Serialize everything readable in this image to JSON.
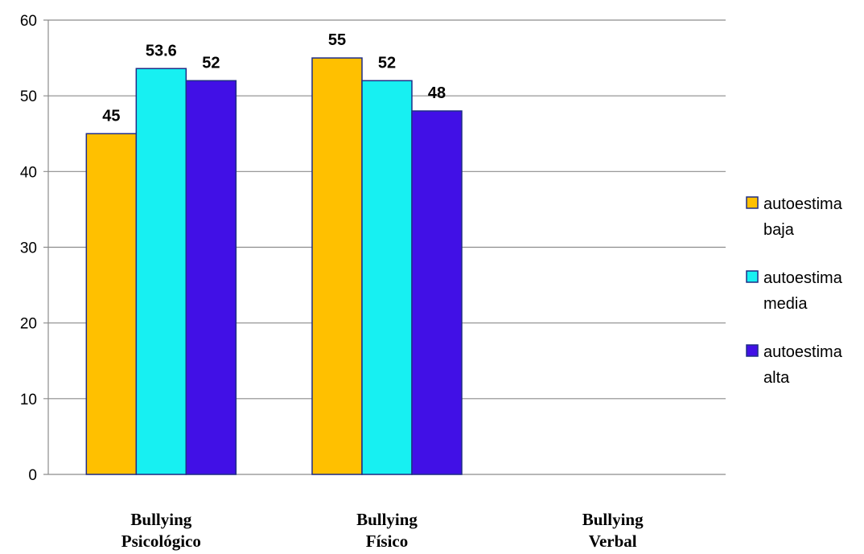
{
  "chart_data": {
    "type": "bar",
    "categories": [
      [
        "Bullying",
        "Psicológico"
      ],
      [
        "Bullying",
        "Físico"
      ],
      [
        "Bullying",
        "Verbal"
      ]
    ],
    "series": [
      {
        "name": [
          "autoestima",
          "baja"
        ],
        "color": "#FFC000",
        "values": [
          45,
          55,
          null
        ]
      },
      {
        "name": [
          "autoestima",
          "media"
        ],
        "color": "#17F0F2",
        "values": [
          53.6,
          52,
          null
        ]
      },
      {
        "name": [
          "autoestima",
          "alta"
        ],
        "color": "#4110E6",
        "values": [
          52,
          48,
          null
        ]
      }
    ],
    "data_labels": [
      [
        "45",
        "53.6",
        "52"
      ],
      [
        "55",
        "52",
        "48"
      ],
      []
    ],
    "y_ticks": [
      "0",
      "10",
      "20",
      "30",
      "40",
      "50",
      "60"
    ],
    "ylim": [
      0,
      60
    ],
    "grid": true,
    "legend_position": "right",
    "bar_outline_color": "#1F2D86"
  }
}
